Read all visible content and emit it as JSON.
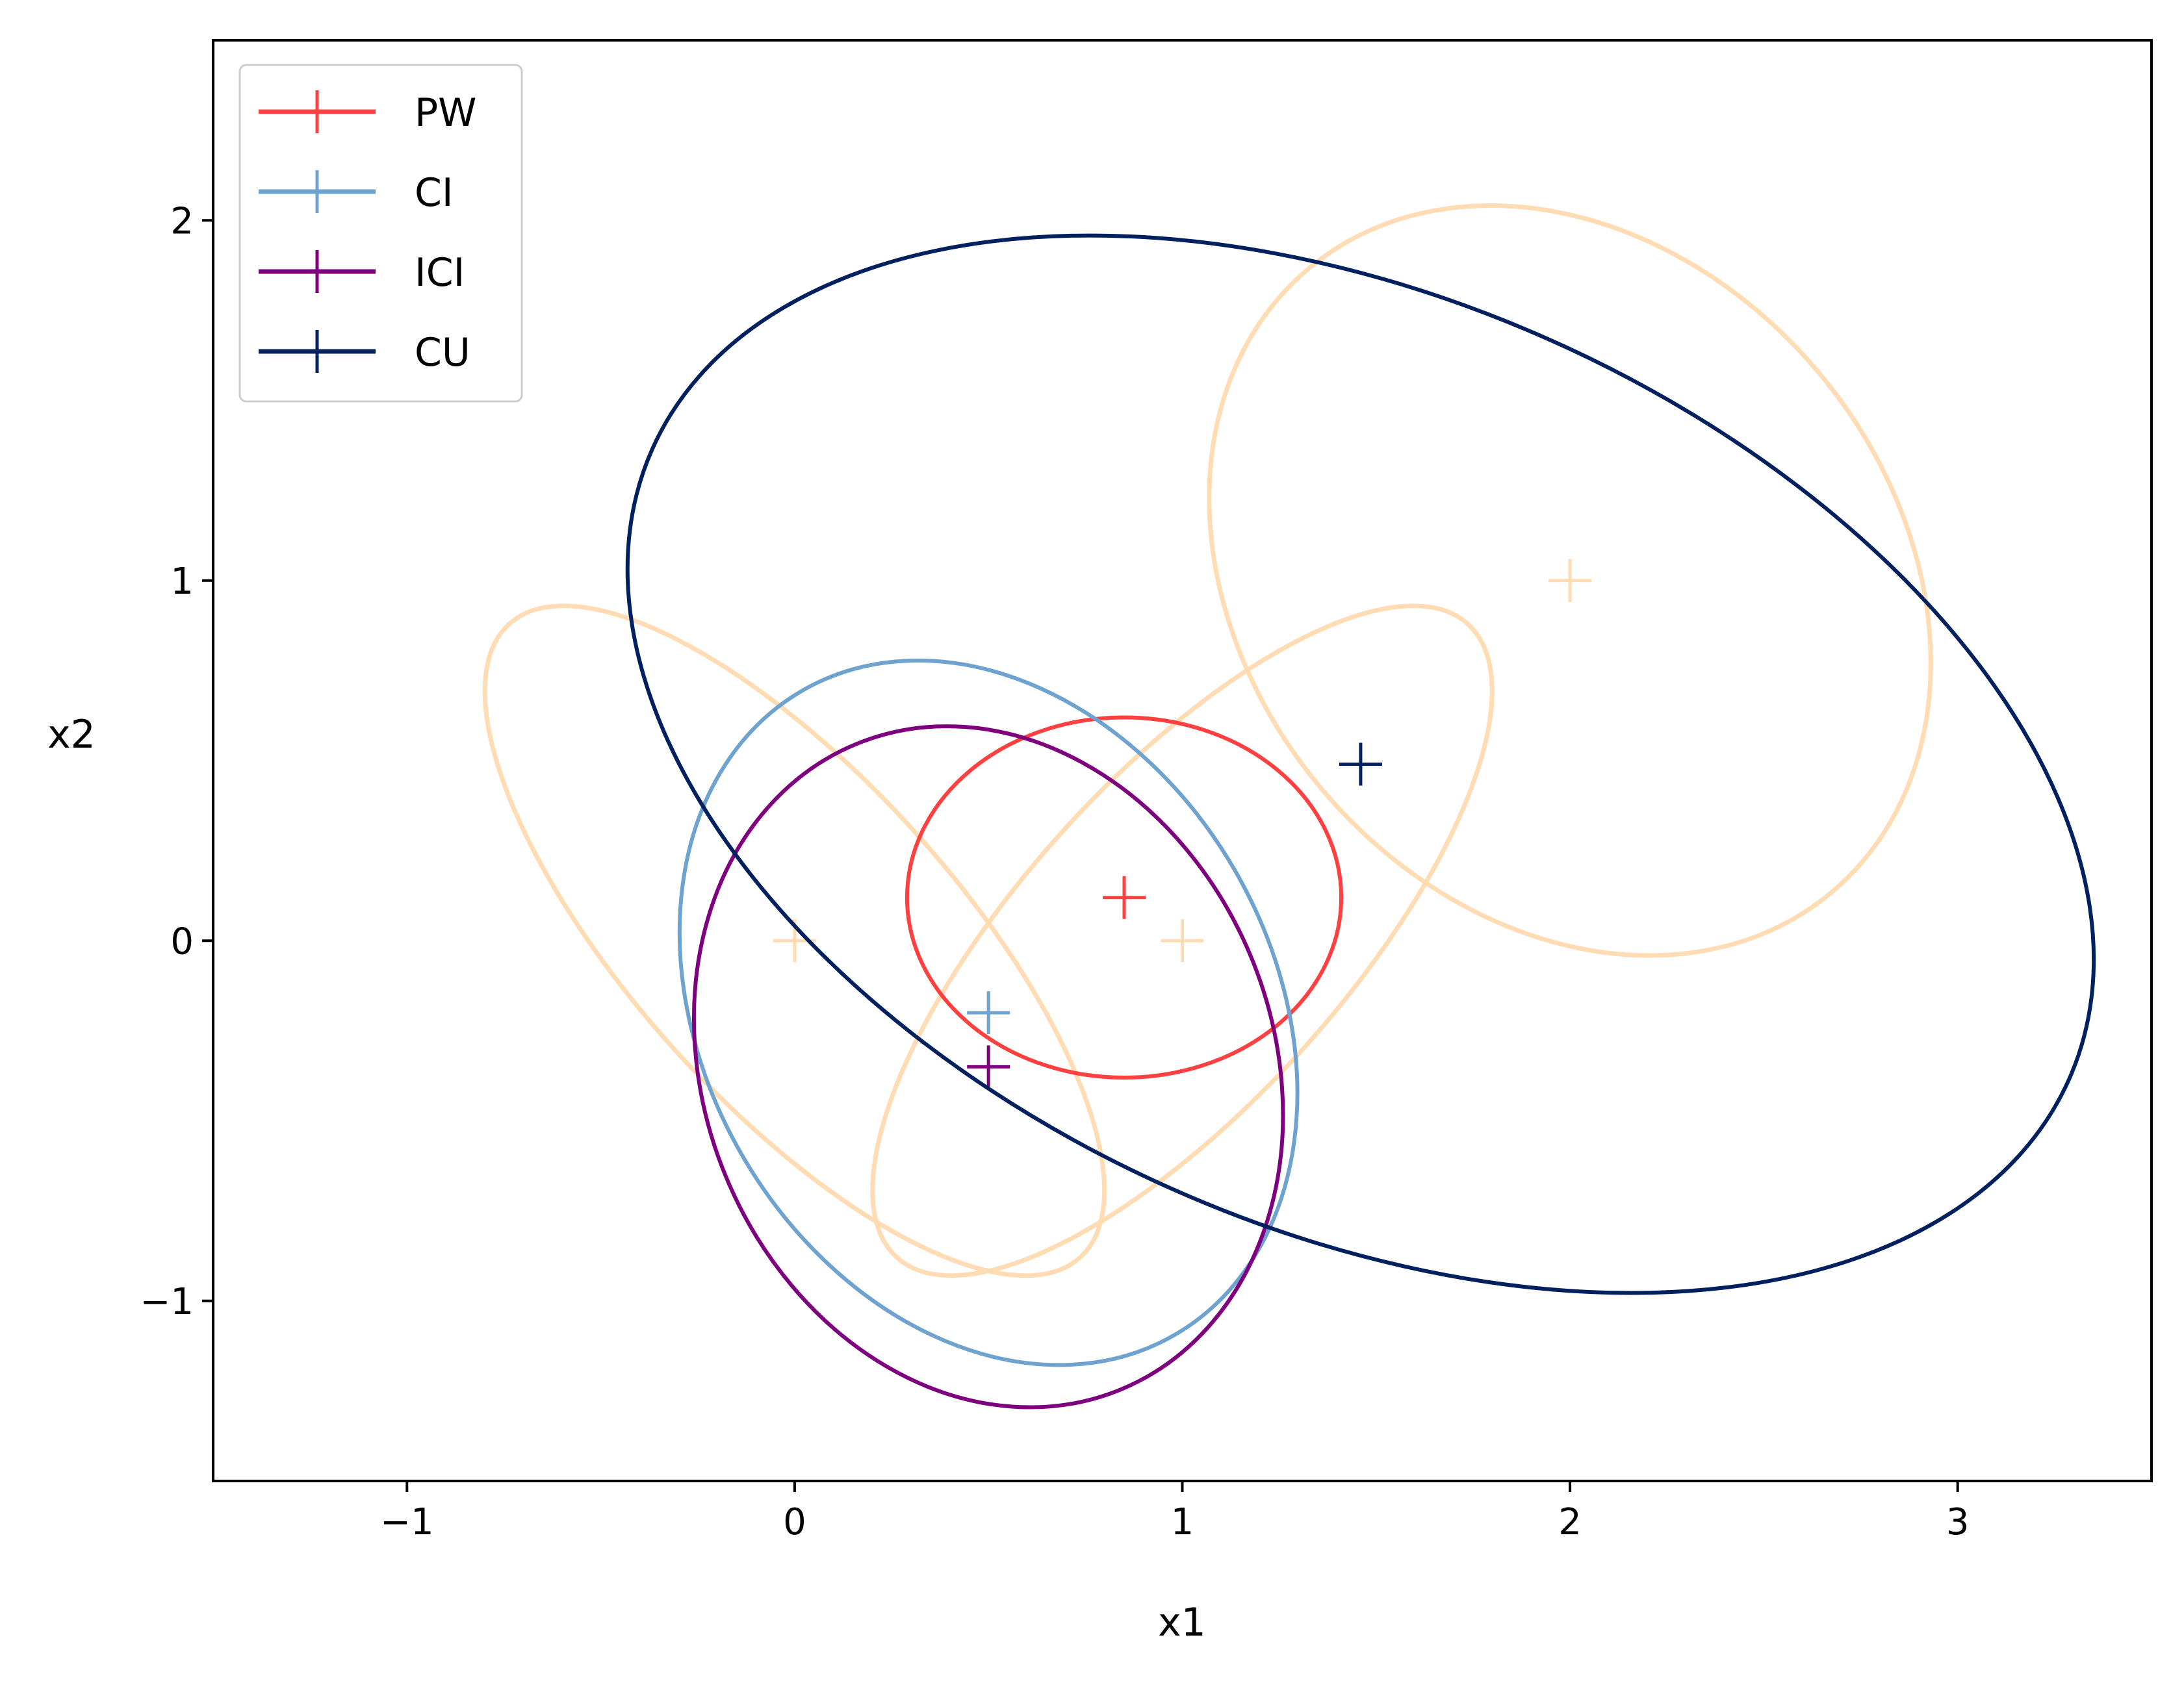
{
  "chart_data": {
    "type": "scatter",
    "title": "",
    "xlabel": "x1",
    "ylabel": "x2",
    "xlim": [
      -1.5,
      3.5
    ],
    "ylim": [
      -1.5,
      2.5
    ],
    "xticks": [
      -1,
      0,
      1,
      2,
      3
    ],
    "yticks": [
      -1,
      0,
      1,
      2
    ],
    "xtick_labels": [
      "−1",
      "0",
      "1",
      "2",
      "3"
    ],
    "ytick_labels": [
      "−1",
      "0",
      "1",
      "2"
    ],
    "grid": false,
    "legend_position": "upper-left",
    "background_estimates": {
      "color": "#ffdab0",
      "means": [
        {
          "x": 0,
          "y": 0
        },
        {
          "x": 1,
          "y": 0
        },
        {
          "x": 2,
          "y": 1
        }
      ],
      "ellipses": [
        {
          "cx": 0.0,
          "cy": 0.0,
          "rx": 1.1,
          "ry": 0.45,
          "angle_deg": -48
        },
        {
          "cx": 1.0,
          "cy": 0.0,
          "rx": 1.1,
          "ry": 0.45,
          "angle_deg": 48
        },
        {
          "cx": 2.0,
          "cy": 1.0,
          "rx": 1.05,
          "ry": 0.9,
          "angle_deg": -50
        }
      ]
    },
    "series": [
      {
        "name": "PW",
        "color": "#ff4040",
        "mean": {
          "x": 0.85,
          "y": 0.12
        },
        "ellipse": {
          "cx": 0.85,
          "cy": 0.12,
          "rx": 0.56,
          "ry": 0.5,
          "angle_deg": 0
        }
      },
      {
        "name": "CI",
        "color": "#6fa3cf",
        "mean": {
          "x": 0.5,
          "y": -0.2
        },
        "ellipse": {
          "cx": 0.5,
          "cy": -0.2,
          "rx": 0.96,
          "ry": 0.79,
          "angle_deg": -60
        }
      },
      {
        "name": "ICI",
        "color": "#7f007f",
        "mean": {
          "x": 0.5,
          "y": -0.35
        },
        "ellipse": {
          "cx": 0.5,
          "cy": -0.35,
          "rx": 0.9,
          "ry": 0.79,
          "angle_deg": -68
        }
      },
      {
        "name": "CU",
        "color": "#002060",
        "mean": {
          "x": 1.46,
          "y": 0.49
        },
        "ellipse": {
          "cx": 1.46,
          "cy": 0.49,
          "rx": 2.0,
          "ry": 1.29,
          "angle_deg": -24
        }
      }
    ]
  }
}
